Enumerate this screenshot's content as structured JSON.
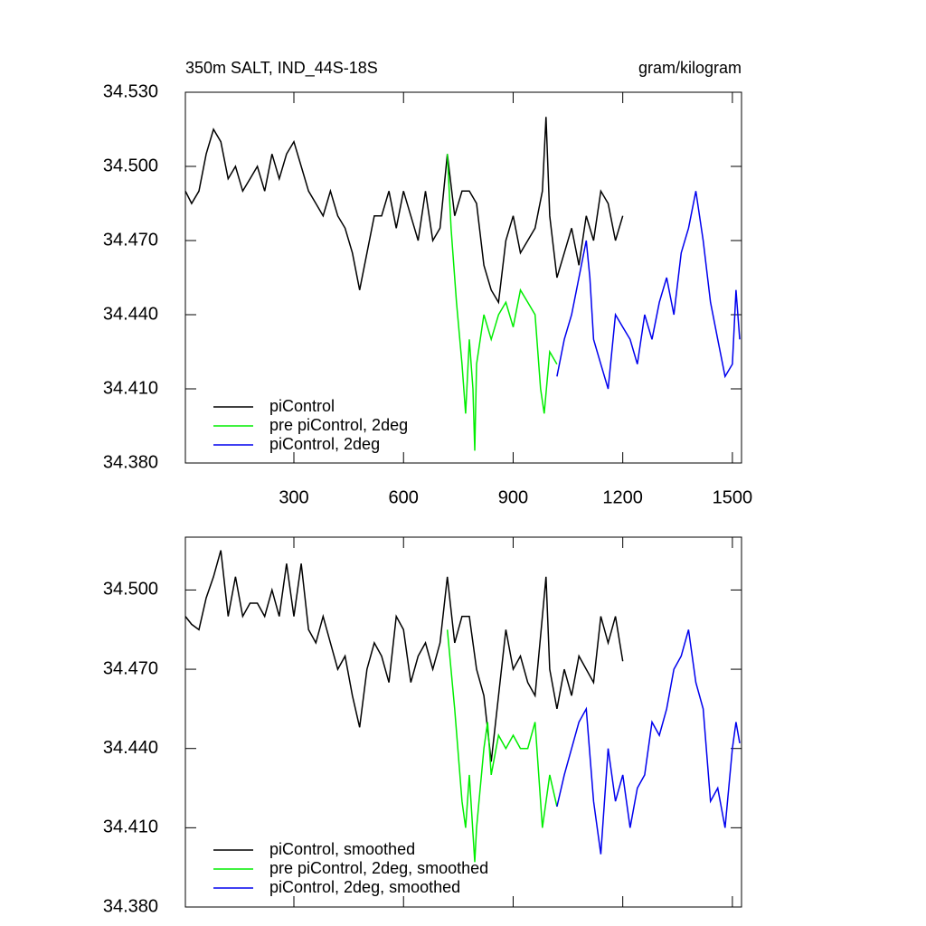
{
  "chart_data": [
    {
      "type": "line",
      "title": "350m SALT, IND_44S-18S",
      "subtitle": "gram/kilogram",
      "xlim": [
        3,
        1525
      ],
      "xticks": [
        300,
        600,
        900,
        1200,
        1500
      ],
      "ylim": [
        34.38,
        34.53
      ],
      "yticks": [
        {
          "value": 34.38,
          "label": "34.380"
        },
        {
          "value": 34.41,
          "label": "34.410"
        },
        {
          "value": 34.44,
          "label": "34.440"
        },
        {
          "value": 34.47,
          "label": "34.470"
        },
        {
          "value": 34.5,
          "label": "34.500"
        },
        {
          "value": 34.53,
          "label": "34.530"
        }
      ],
      "series": [
        {
          "name": "piControl",
          "color": "#000000",
          "x": [
            3,
            20,
            40,
            60,
            80,
            100,
            120,
            140,
            160,
            180,
            200,
            220,
            240,
            260,
            280,
            300,
            320,
            340,
            360,
            380,
            400,
            420,
            440,
            460,
            480,
            500,
            520,
            540,
            560,
            580,
            600,
            620,
            640,
            660,
            680,
            700,
            720,
            740,
            760,
            780,
            800,
            820,
            840,
            860,
            880,
            900,
            920,
            940,
            960,
            980,
            990,
            1000,
            1020,
            1040,
            1060,
            1080,
            1100,
            1120,
            1140,
            1160,
            1180,
            1200
          ],
          "values": [
            34.49,
            34.485,
            34.49,
            34.505,
            34.515,
            34.51,
            34.495,
            34.5,
            34.49,
            34.495,
            34.5,
            34.49,
            34.505,
            34.495,
            34.505,
            34.51,
            34.5,
            34.49,
            34.485,
            34.48,
            34.49,
            34.48,
            34.475,
            34.465,
            34.45,
            34.465,
            34.48,
            34.48,
            34.49,
            34.475,
            34.49,
            34.48,
            34.47,
            34.49,
            34.47,
            34.475,
            34.505,
            34.48,
            34.49,
            34.49,
            34.485,
            34.46,
            34.45,
            34.445,
            34.47,
            34.48,
            34.465,
            34.47,
            34.475,
            34.49,
            34.52,
            34.48,
            34.455,
            34.465,
            34.475,
            34.46,
            34.48,
            34.47,
            34.49,
            34.485,
            34.47,
            34.48
          ]
        },
        {
          "name": "pre piControl, 2deg",
          "color": "#00ee00",
          "x": [
            720,
            730,
            745,
            760,
            770,
            780,
            790,
            795,
            800,
            820,
            840,
            860,
            880,
            900,
            920,
            940,
            960,
            975,
            985,
            1000,
            1020
          ],
          "values": [
            34.505,
            34.475,
            34.445,
            34.42,
            34.4,
            34.43,
            34.41,
            34.385,
            34.42,
            34.44,
            34.43,
            34.44,
            34.445,
            34.435,
            34.45,
            34.445,
            34.44,
            34.41,
            34.4,
            34.425,
            34.42
          ]
        },
        {
          "name": "piControl, 2deg",
          "color": "#0000ee",
          "x": [
            1020,
            1040,
            1060,
            1080,
            1100,
            1110,
            1120,
            1140,
            1160,
            1180,
            1200,
            1220,
            1240,
            1260,
            1280,
            1300,
            1320,
            1340,
            1360,
            1380,
            1400,
            1420,
            1440,
            1460,
            1480,
            1500,
            1510,
            1520
          ],
          "values": [
            34.415,
            34.43,
            34.44,
            34.455,
            34.47,
            34.455,
            34.43,
            34.42,
            34.41,
            34.44,
            34.435,
            34.43,
            34.42,
            34.44,
            34.43,
            34.445,
            34.455,
            34.44,
            34.465,
            34.475,
            34.49,
            34.47,
            34.445,
            34.43,
            34.415,
            34.42,
            34.45,
            34.43
          ]
        }
      ]
    },
    {
      "type": "line",
      "xlim": [
        3,
        1525
      ],
      "xticks": [
        300,
        600,
        900,
        1200,
        1500
      ],
      "ylim": [
        34.38,
        34.52
      ],
      "yticks": [
        {
          "value": 34.38,
          "label": "34.380"
        },
        {
          "value": 34.41,
          "label": "34.410"
        },
        {
          "value": 34.44,
          "label": "34.440"
        },
        {
          "value": 34.47,
          "label": "34.470"
        },
        {
          "value": 34.5,
          "label": "34.500"
        }
      ],
      "series": [
        {
          "name": "piControl, smoothed",
          "color": "#000000",
          "x": [
            3,
            20,
            40,
            60,
            80,
            100,
            120,
            140,
            160,
            180,
            200,
            220,
            240,
            260,
            280,
            300,
            320,
            340,
            360,
            380,
            400,
            420,
            440,
            460,
            480,
            500,
            520,
            540,
            560,
            580,
            600,
            620,
            640,
            660,
            680,
            700,
            720,
            740,
            760,
            780,
            800,
            820,
            840,
            860,
            880,
            900,
            920,
            940,
            960,
            980,
            990,
            1000,
            1020,
            1040,
            1060,
            1080,
            1100,
            1120,
            1140,
            1160,
            1180,
            1200
          ],
          "values": [
            34.49,
            34.487,
            34.485,
            34.497,
            34.505,
            34.515,
            34.49,
            34.505,
            34.49,
            34.495,
            34.495,
            34.49,
            34.5,
            34.49,
            34.51,
            34.49,
            34.51,
            34.485,
            34.48,
            34.49,
            34.48,
            34.47,
            34.475,
            34.46,
            34.448,
            34.47,
            34.48,
            34.475,
            34.465,
            34.49,
            34.485,
            34.465,
            34.475,
            34.48,
            34.47,
            34.48,
            34.505,
            34.48,
            34.49,
            34.49,
            34.47,
            34.46,
            34.435,
            34.46,
            34.485,
            34.47,
            34.475,
            34.465,
            34.46,
            34.49,
            34.505,
            34.47,
            34.455,
            34.47,
            34.46,
            34.475,
            34.47,
            34.465,
            34.49,
            34.48,
            34.49,
            34.473
          ]
        },
        {
          "name": "pre piControl, 2deg, smoothed",
          "color": "#00ee00",
          "x": [
            720,
            740,
            760,
            770,
            780,
            795,
            800,
            820,
            830,
            840,
            860,
            880,
            900,
            920,
            940,
            960,
            980,
            1000,
            1020
          ],
          "values": [
            34.485,
            34.455,
            34.42,
            34.41,
            34.43,
            34.397,
            34.41,
            34.44,
            34.45,
            34.43,
            34.445,
            34.44,
            34.445,
            34.44,
            34.44,
            34.45,
            34.41,
            34.43,
            34.418
          ]
        },
        {
          "name": "piControl, 2deg, smoothed",
          "color": "#0000ee",
          "x": [
            1020,
            1040,
            1060,
            1080,
            1100,
            1120,
            1140,
            1160,
            1180,
            1200,
            1220,
            1240,
            1260,
            1280,
            1300,
            1320,
            1340,
            1360,
            1380,
            1400,
            1420,
            1440,
            1460,
            1480,
            1500,
            1510,
            1520
          ],
          "values": [
            34.418,
            34.43,
            34.44,
            34.45,
            34.455,
            34.42,
            34.4,
            34.44,
            34.42,
            34.43,
            34.41,
            34.425,
            34.43,
            34.45,
            34.445,
            34.455,
            34.47,
            34.475,
            34.485,
            34.465,
            34.455,
            34.42,
            34.425,
            34.41,
            34.44,
            34.45,
            34.442
          ]
        }
      ]
    }
  ]
}
